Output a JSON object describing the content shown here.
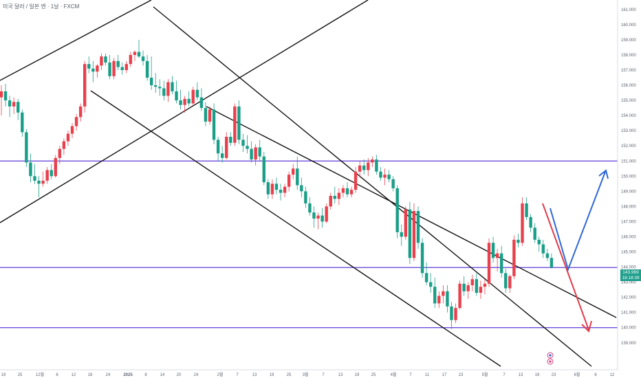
{
  "header": {
    "title": "미국 달러 / 일본 엔 · 1날 · FXCM"
  },
  "colors": {
    "up": "#e8404d",
    "down": "#199e87",
    "level": "#5b3ad8",
    "trend": "#111111",
    "arrow_down": "#e23a4a",
    "arrow_up": "#2e67d6",
    "badge": "#1f9f8c"
  },
  "price_badge": {
    "price": "143.969",
    "countdown": "18:18:39"
  },
  "chart_data": {
    "type": "candlestick",
    "symbol": "USDJPY",
    "timeframe": "1D",
    "ylim": [
      138.4,
      161.4
    ],
    "y_ticks": [
      "139.000",
      "140.000",
      "141.000",
      "142.000",
      "143.000",
      "144.000",
      "145.000",
      "146.000",
      "147.000",
      "148.000",
      "149.000",
      "150.000",
      "151.000",
      "152.000",
      "153.000",
      "154.000",
      "155.000",
      "156.000",
      "157.000",
      "158.000",
      "159.000",
      "160.000",
      "161.000"
    ],
    "x_ticks": [
      "19",
      "25",
      "12월",
      "6",
      "12",
      "18",
      "24",
      "2025",
      "8",
      "14",
      "20",
      "24",
      "2월",
      "7",
      "13",
      "19",
      "25",
      "3월",
      "7",
      "13",
      "19",
      "25",
      "4월",
      "7",
      "11",
      "17",
      "23",
      "5월",
      "7",
      "13",
      "19",
      "23",
      "6월",
      "6",
      "12"
    ],
    "horizontal_levels": [
      151.0,
      143.969,
      140.0
    ],
    "candles": [
      [
        155.2,
        156.0,
        154.0,
        155.6
      ],
      [
        155.6,
        156.1,
        154.6,
        155.0
      ],
      [
        155.0,
        155.3,
        153.9,
        154.6
      ],
      [
        154.6,
        155.2,
        154.1,
        154.9
      ],
      [
        154.9,
        155.1,
        153.7,
        154.2
      ],
      [
        154.2,
        154.4,
        152.6,
        152.9
      ],
      [
        152.9,
        153.1,
        150.6,
        150.9
      ],
      [
        150.9,
        151.5,
        149.6,
        150.0
      ],
      [
        150.0,
        150.8,
        149.5,
        149.7
      ],
      [
        149.7,
        150.0,
        148.6,
        149.5
      ],
      [
        149.5,
        150.3,
        149.3,
        149.7
      ],
      [
        149.7,
        150.6,
        149.5,
        150.4
      ],
      [
        150.4,
        150.8,
        149.8,
        150.0
      ],
      [
        150.0,
        151.4,
        149.9,
        151.2
      ],
      [
        151.2,
        152.0,
        150.8,
        151.8
      ],
      [
        151.8,
        152.5,
        151.4,
        152.3
      ],
      [
        152.3,
        153.0,
        152.0,
        152.8
      ],
      [
        152.8,
        153.5,
        152.5,
        153.3
      ],
      [
        153.3,
        154.1,
        153.0,
        153.9
      ],
      [
        153.9,
        154.8,
        153.6,
        154.6
      ],
      [
        154.6,
        157.6,
        154.2,
        157.4
      ],
      [
        157.4,
        157.9,
        156.8,
        157.1
      ],
      [
        157.1,
        157.6,
        156.2,
        156.9
      ],
      [
        156.9,
        157.4,
        156.5,
        157.3
      ],
      [
        157.3,
        158.1,
        157.0,
        157.9
      ],
      [
        157.9,
        158.1,
        157.3,
        157.5
      ],
      [
        157.5,
        158.0,
        156.4,
        156.6
      ],
      [
        156.6,
        157.8,
        156.4,
        157.6
      ],
      [
        157.6,
        158.0,
        157.0,
        157.2
      ],
      [
        157.2,
        157.5,
        156.7,
        157.0
      ],
      [
        157.0,
        157.6,
        156.8,
        157.4
      ],
      [
        157.4,
        158.2,
        157.2,
        158.0
      ],
      [
        158.0,
        158.3,
        157.6,
        158.2
      ],
      [
        158.2,
        159.0,
        157.8,
        157.9
      ],
      [
        157.9,
        158.3,
        157.3,
        157.6
      ],
      [
        157.6,
        158.0,
        156.3,
        156.5
      ],
      [
        156.5,
        157.9,
        155.7,
        156.0
      ],
      [
        156.0,
        156.8,
        155.5,
        155.9
      ],
      [
        155.9,
        156.4,
        155.3,
        155.8
      ],
      [
        155.8,
        156.3,
        155.0,
        155.3
      ],
      [
        155.3,
        156.4,
        154.9,
        156.2
      ],
      [
        156.2,
        156.6,
        155.4,
        155.6
      ],
      [
        155.6,
        156.3,
        154.8,
        155.0
      ],
      [
        155.0,
        155.7,
        154.4,
        154.7
      ],
      [
        154.7,
        155.3,
        154.2,
        155.1
      ],
      [
        155.1,
        155.6,
        154.6,
        154.8
      ],
      [
        154.8,
        155.9,
        154.7,
        155.7
      ],
      [
        155.7,
        156.2,
        155.0,
        155.2
      ],
      [
        155.2,
        155.8,
        154.3,
        154.5
      ],
      [
        154.5,
        154.9,
        153.3,
        153.6
      ],
      [
        153.6,
        154.6,
        153.4,
        154.4
      ],
      [
        154.4,
        154.8,
        152.1,
        152.4
      ],
      [
        152.4,
        152.6,
        151.0,
        151.5
      ],
      [
        151.5,
        152.0,
        150.9,
        151.2
      ],
      [
        151.2,
        152.9,
        151.1,
        152.6
      ],
      [
        152.6,
        152.9,
        152.0,
        152.2
      ],
      [
        152.2,
        154.8,
        152.0,
        154.6
      ],
      [
        154.6,
        155.0,
        152.1,
        152.4
      ],
      [
        152.4,
        152.8,
        151.6,
        152.0
      ],
      [
        152.0,
        152.7,
        151.5,
        151.8
      ],
      [
        151.8,
        152.3,
        150.9,
        151.1
      ],
      [
        151.1,
        152.1,
        150.7,
        151.9
      ],
      [
        151.9,
        152.4,
        151.0,
        151.3
      ],
      [
        151.3,
        151.6,
        149.4,
        149.6
      ],
      [
        149.6,
        149.8,
        148.5,
        148.8
      ],
      [
        148.8,
        149.8,
        148.5,
        149.5
      ],
      [
        149.5,
        149.9,
        148.8,
        149.1
      ],
      [
        149.1,
        149.5,
        148.4,
        148.9
      ],
      [
        148.9,
        149.5,
        148.6,
        149.3
      ],
      [
        149.3,
        150.3,
        149.0,
        150.1
      ],
      [
        150.1,
        150.8,
        149.8,
        150.5
      ],
      [
        150.5,
        151.3,
        149.1,
        149.4
      ],
      [
        149.4,
        149.9,
        148.6,
        149.0
      ],
      [
        149.0,
        149.3,
        147.9,
        148.2
      ],
      [
        148.2,
        148.6,
        147.4,
        147.6
      ],
      [
        147.6,
        148.0,
        146.6,
        147.2
      ],
      [
        147.2,
        147.6,
        146.5,
        147.4
      ],
      [
        147.4,
        147.9,
        146.6,
        147.0
      ],
      [
        147.0,
        148.2,
        146.9,
        148.0
      ],
      [
        148.0,
        148.9,
        147.8,
        148.7
      ],
      [
        148.7,
        149.3,
        148.2,
        148.5
      ],
      [
        148.5,
        149.2,
        148.1,
        148.9
      ],
      [
        148.9,
        149.4,
        148.6,
        149.2
      ],
      [
        149.2,
        149.6,
        148.6,
        148.8
      ],
      [
        148.8,
        149.3,
        148.6,
        149.1
      ],
      [
        149.1,
        150.6,
        148.9,
        150.3
      ],
      [
        150.3,
        151.0,
        149.9,
        150.7
      ],
      [
        150.7,
        151.1,
        150.1,
        150.4
      ],
      [
        150.4,
        151.2,
        150.0,
        150.9
      ],
      [
        150.9,
        151.3,
        150.6,
        151.1
      ],
      [
        151.1,
        151.4,
        150.1,
        150.3
      ],
      [
        150.3,
        150.6,
        149.7,
        149.9
      ],
      [
        149.9,
        150.5,
        149.4,
        150.1
      ],
      [
        150.1,
        150.4,
        149.6,
        149.8
      ],
      [
        149.8,
        150.0,
        149.0,
        149.2
      ],
      [
        149.2,
        149.4,
        145.9,
        146.3
      ],
      [
        146.3,
        146.8,
        145.4,
        146.0
      ],
      [
        146.0,
        148.0,
        145.8,
        147.8
      ],
      [
        147.8,
        148.3,
        144.2,
        144.6
      ],
      [
        144.6,
        148.2,
        144.4,
        147.7
      ],
      [
        147.7,
        148.0,
        145.2,
        145.6
      ],
      [
        145.6,
        145.9,
        143.3,
        143.6
      ],
      [
        143.6,
        144.3,
        142.8,
        143.0
      ],
      [
        143.0,
        143.6,
        142.3,
        142.7
      ],
      [
        142.7,
        143.3,
        141.3,
        141.6
      ],
      [
        141.6,
        142.4,
        141.3,
        142.1
      ],
      [
        142.1,
        142.8,
        141.6,
        142.4
      ],
      [
        142.4,
        142.8,
        141.0,
        141.4
      ],
      [
        141.4,
        141.7,
        139.9,
        140.5
      ],
      [
        140.5,
        141.6,
        140.3,
        141.3
      ],
      [
        141.3,
        143.1,
        141.2,
        142.9
      ],
      [
        142.9,
        143.4,
        142.1,
        142.4
      ],
      [
        142.4,
        143.0,
        141.9,
        142.8
      ],
      [
        142.8,
        143.5,
        142.4,
        143.2
      ],
      [
        143.2,
        143.6,
        142.1,
        142.3
      ],
      [
        142.3,
        143.1,
        141.9,
        142.7
      ],
      [
        142.7,
        143.2,
        142.2,
        142.9
      ],
      [
        142.9,
        145.9,
        142.7,
        145.6
      ],
      [
        145.6,
        146.0,
        144.3,
        144.6
      ],
      [
        144.6,
        145.2,
        143.7,
        144.9
      ],
      [
        144.9,
        145.4,
        143.3,
        143.6
      ],
      [
        143.6,
        143.9,
        142.3,
        142.6
      ],
      [
        142.6,
        143.5,
        142.3,
        143.4
      ],
      [
        143.4,
        146.1,
        143.2,
        145.8
      ],
      [
        145.8,
        146.2,
        145.3,
        145.6
      ],
      [
        145.6,
        148.6,
        145.4,
        148.2
      ],
      [
        148.2,
        148.6,
        147.1,
        147.3
      ],
      [
        147.3,
        147.5,
        146.3,
        146.6
      ],
      [
        146.6,
        146.9,
        145.6,
        145.8
      ],
      [
        145.8,
        146.0,
        145.0,
        145.5
      ],
      [
        145.5,
        145.8,
        144.6,
        144.9
      ],
      [
        144.9,
        145.2,
        144.4,
        144.6
      ],
      [
        144.6,
        144.9,
        143.9,
        143.97
      ]
    ]
  }
}
